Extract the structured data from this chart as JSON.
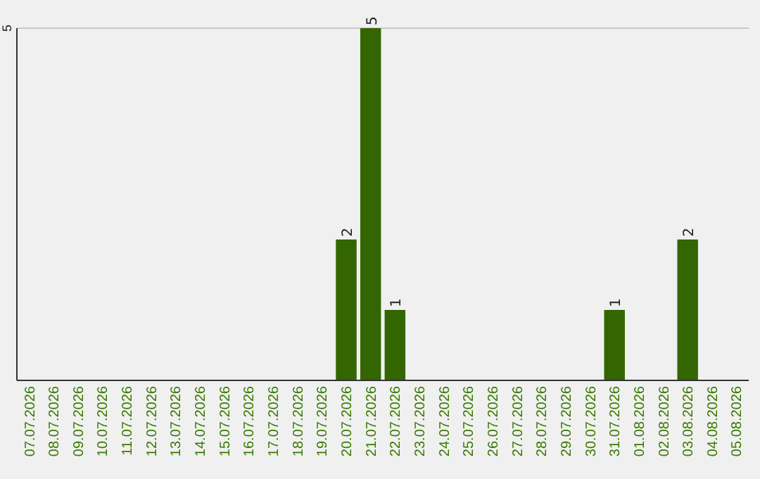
{
  "chart_data": {
    "type": "bar",
    "categories": [
      "07.07.2026",
      "08.07.2026",
      "09.07.2026",
      "10.07.2026",
      "11.07.2026",
      "12.07.2026",
      "13.07.2026",
      "14.07.2026",
      "15.07.2026",
      "16.07.2026",
      "17.07.2026",
      "18.07.2026",
      "19.07.2026",
      "20.07.2026",
      "21.07.2026",
      "22.07.2026",
      "23.07.2026",
      "24.07.2026",
      "25.07.2026",
      "26.07.2026",
      "27.07.2026",
      "28.07.2026",
      "29.07.2026",
      "30.07.2026",
      "31.07.2026",
      "01.08.2026",
      "02.08.2026",
      "03.08.2026",
      "04.08.2026",
      "05.08.2026"
    ],
    "values": [
      null,
      null,
      null,
      null,
      null,
      null,
      null,
      null,
      null,
      null,
      null,
      null,
      null,
      2,
      5,
      1,
      null,
      null,
      null,
      null,
      null,
      null,
      null,
      null,
      1,
      null,
      null,
      2,
      null,
      null
    ],
    "value_labels": [
      null,
      null,
      null,
      null,
      null,
      null,
      null,
      null,
      null,
      null,
      null,
      null,
      null,
      "2",
      "5",
      "1",
      null,
      null,
      null,
      null,
      null,
      null,
      null,
      null,
      "1",
      null,
      null,
      "2",
      null,
      null
    ],
    "color": "#336600",
    "ylim": [
      0,
      5
    ],
    "yticks": [
      5
    ]
  }
}
